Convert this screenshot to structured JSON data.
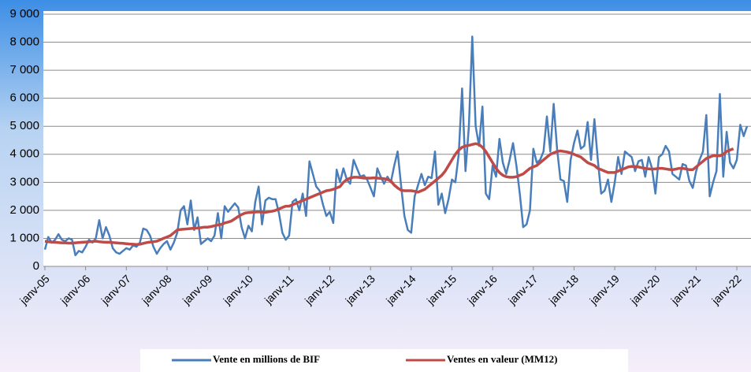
{
  "chart_data": {
    "type": "line",
    "categories": [
      "janv-05",
      null,
      null,
      null,
      null,
      null,
      null,
      null,
      null,
      null,
      null,
      null,
      "janv-06",
      null,
      null,
      null,
      null,
      null,
      null,
      null,
      null,
      null,
      null,
      null,
      "janv-07",
      null,
      null,
      null,
      null,
      null,
      null,
      null,
      null,
      null,
      null,
      null,
      "janv-08",
      null,
      null,
      null,
      null,
      null,
      null,
      null,
      null,
      null,
      null,
      null,
      "janv-09",
      null,
      null,
      null,
      null,
      null,
      null,
      null,
      null,
      null,
      null,
      null,
      "janv-10",
      null,
      null,
      null,
      null,
      null,
      null,
      null,
      null,
      null,
      null,
      null,
      "janv-11",
      null,
      null,
      null,
      null,
      null,
      null,
      null,
      null,
      null,
      null,
      null,
      "janv-12",
      null,
      null,
      null,
      null,
      null,
      null,
      null,
      null,
      null,
      null,
      null,
      "janv-13",
      null,
      null,
      null,
      null,
      null,
      null,
      null,
      null,
      null,
      null,
      null,
      "janv-14",
      null,
      null,
      null,
      null,
      null,
      null,
      null,
      null,
      null,
      null,
      null,
      "janv-15",
      null,
      null,
      null,
      null,
      null,
      null,
      null,
      null,
      null,
      null,
      null,
      "janv-16",
      null,
      null,
      null,
      null,
      null,
      null,
      null,
      null,
      null,
      null,
      null,
      "janv-17",
      null,
      null,
      null,
      null,
      null,
      null,
      null,
      null,
      null,
      null,
      null,
      "janv-18",
      null,
      null,
      null,
      null,
      null,
      null,
      null,
      null,
      null,
      null,
      null,
      "janv-19",
      null,
      null,
      null,
      null,
      null,
      null,
      null,
      null,
      null,
      null,
      null,
      "janv-20",
      null,
      null,
      null,
      null,
      null,
      null,
      null,
      null,
      null,
      null,
      null,
      "janv-21",
      null,
      null,
      null,
      null,
      null,
      null,
      null,
      null,
      null,
      null,
      null,
      "janv-22",
      null,
      null,
      null
    ],
    "series": [
      {
        "name": "Vente en millions de BIF",
        "color": "#4a7ebb",
        "values": [
          600,
          1050,
          850,
          950,
          1150,
          950,
          900,
          1000,
          950,
          400,
          550,
          500,
          700,
          950,
          850,
          1000,
          1650,
          1000,
          1400,
          1100,
          650,
          500,
          450,
          550,
          650,
          600,
          750,
          700,
          850,
          1350,
          1300,
          1100,
          700,
          450,
          650,
          800,
          900,
          600,
          850,
          1200,
          2000,
          2150,
          1500,
          2350,
          1300,
          1750,
          800,
          900,
          1000,
          900,
          1100,
          1900,
          1000,
          2150,
          1950,
          2100,
          2250,
          2100,
          1400,
          1000,
          1450,
          1250,
          2300,
          2850,
          1500,
          2350,
          2450,
          2400,
          2400,
          1900,
          1200,
          950,
          1100,
          2300,
          2400,
          2000,
          2600,
          1800,
          3750,
          3300,
          2850,
          2700,
          2200,
          1800,
          1950,
          1550,
          3450,
          3000,
          3500,
          3100,
          2950,
          3800,
          3500,
          3200,
          3250,
          3100,
          2800,
          2500,
          3500,
          3200,
          2950,
          3200,
          3000,
          3600,
          4100,
          2900,
          1800,
          1300,
          1200,
          2500,
          2900,
          3300,
          2900,
          3200,
          3150,
          4100,
          2200,
          2600,
          1900,
          2400,
          3100,
          3000,
          4000,
          6350,
          3400,
          5000,
          8200,
          5000,
          4300,
          5700,
          2600,
          2400,
          3600,
          3200,
          4550,
          3700,
          3300,
          3800,
          4400,
          3600,
          2600,
          1400,
          1500,
          2000,
          4200,
          3700,
          3800,
          4100,
          5350,
          4100,
          5800,
          4200,
          3100,
          3050,
          2300,
          3800,
          4400,
          4850,
          4200,
          4300,
          5150,
          3800,
          5250,
          3800,
          2600,
          2700,
          3100,
          2300,
          3000,
          3900,
          3300,
          4100,
          4000,
          3900,
          3400,
          3750,
          3800,
          3200,
          3900,
          3500,
          2600,
          3900,
          4000,
          4300,
          4100,
          3300,
          3200,
          3100,
          3650,
          3600,
          3050,
          2800,
          3400,
          3800,
          4100,
          5400,
          2500,
          3000,
          3400,
          6150,
          3200,
          4800,
          3700,
          3500,
          3800,
          5050,
          4650,
          5000
        ]
      },
      {
        "name": "Ventes en valeur (MM12)",
        "color": "#be4b48",
        "values": [
          900,
          880,
          870,
          860,
          850,
          840,
          840,
          830,
          830,
          840,
          850,
          860,
          870,
          880,
          890,
          900,
          880,
          870,
          860,
          860,
          850,
          840,
          830,
          820,
          810,
          800,
          790,
          780,
          790,
          820,
          850,
          870,
          880,
          900,
          950,
          1000,
          1050,
          1100,
          1200,
          1300,
          1320,
          1330,
          1340,
          1350,
          1360,
          1370,
          1380,
          1400,
          1400,
          1420,
          1450,
          1480,
          1500,
          1550,
          1580,
          1620,
          1700,
          1780,
          1850,
          1900,
          1920,
          1930,
          1940,
          1950,
          1940,
          1930,
          1950,
          1970,
          2000,
          2050,
          2100,
          2150,
          2150,
          2200,
          2250,
          2300,
          2350,
          2400,
          2450,
          2500,
          2550,
          2600,
          2650,
          2700,
          2720,
          2750,
          2800,
          2850,
          3000,
          3100,
          3150,
          3180,
          3180,
          3170,
          3150,
          3150,
          3150,
          3160,
          3150,
          3140,
          3130,
          3100,
          3050,
          2900,
          2800,
          2720,
          2700,
          2700,
          2700,
          2680,
          2650,
          2700,
          2750,
          2850,
          2950,
          3050,
          3150,
          3250,
          3400,
          3600,
          3800,
          4000,
          4150,
          4250,
          4300,
          4320,
          4350,
          4380,
          4350,
          4250,
          4100,
          3900,
          3700,
          3500,
          3350,
          3250,
          3200,
          3180,
          3180,
          3200,
          3250,
          3300,
          3400,
          3500,
          3550,
          3600,
          3700,
          3800,
          3900,
          4000,
          4050,
          4100,
          4120,
          4100,
          4080,
          4050,
          4000,
          3950,
          3900,
          3800,
          3700,
          3650,
          3600,
          3500,
          3450,
          3400,
          3350,
          3350,
          3350,
          3400,
          3450,
          3500,
          3550,
          3570,
          3560,
          3550,
          3520,
          3500,
          3480,
          3470,
          3480,
          3500,
          3500,
          3480,
          3460,
          3450,
          3470,
          3500,
          3500,
          3480,
          3450,
          3450,
          3550,
          3650,
          3750,
          3850,
          3900,
          3950,
          3950,
          3950,
          4000,
          4100,
          4150,
          4200,
          null,
          null,
          null,
          null
        ]
      }
    ],
    "ylim": [
      0,
      9000
    ],
    "yticks": [
      0,
      {
        "value": 1000,
        "label": "1 000"
      },
      {
        "value": 2000,
        "label": "2 000"
      },
      {
        "value": 3000,
        "label": "3 000"
      },
      {
        "value": 4000,
        "label": "4 000"
      },
      {
        "value": 5000,
        "label": "5 000"
      },
      {
        "value": 6000,
        "label": "6 000"
      },
      {
        "value": 7000,
        "label": "7 000"
      },
      {
        "value": 8000,
        "label": "8 000"
      },
      {
        "value": 9000,
        "label": "9 000"
      }
    ],
    "grid": true
  }
}
